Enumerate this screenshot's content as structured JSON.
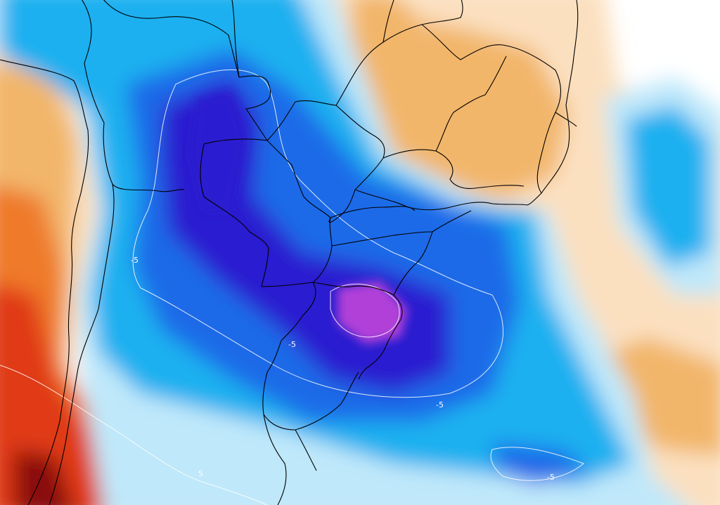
{
  "map": {
    "region": "South America",
    "colors": {
      "cold_extreme": "#b040d8",
      "cold_strong": "#2a1fd0",
      "cold_mid": "#1f6be8",
      "cold_light": "#1fb0f0",
      "cold_pale": "#bfe8fa",
      "neutral": "#ffffff",
      "warm_pale": "#fbe0c0",
      "warm_light": "#f2b66a",
      "warm_mid": "#ef7a2a",
      "warm_strong": "#e03a14",
      "warm_extreme": "#8a0c0c",
      "border_line": "#000000",
      "contour_line": "#ffffff"
    },
    "contour_labels": [
      {
        "text": "-5"
      },
      {
        "text": "-5"
      },
      {
        "text": "-5"
      },
      {
        "text": "-5"
      },
      {
        "text": "5"
      }
    ]
  }
}
